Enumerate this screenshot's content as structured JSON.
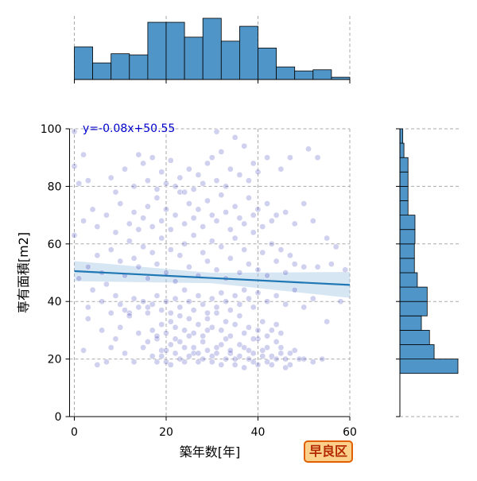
{
  "chart_data": {
    "type": "scatter",
    "xlabel": "築年数[年]",
    "ylabel": "専有面積[m2]",
    "xlim": [
      -1,
      60
    ],
    "ylim": [
      0,
      100
    ],
    "x_ticks": [
      0,
      20,
      40,
      60
    ],
    "y_ticks": [
      0,
      20,
      40,
      60,
      80,
      100
    ],
    "grid": true,
    "regression": {
      "label": "y=-0.08x+50.55",
      "slope": -0.08,
      "intercept": 50.55,
      "line_color": "#1f77b4",
      "ci_color": "#a6c8e4",
      "ci_half_width_at": [
        [
          0,
          3.5
        ],
        [
          30,
          1.8
        ],
        [
          60,
          4.5
        ]
      ]
    },
    "point_color": "#2b2bb8",
    "hist_color": "#4f95c7",
    "x_hist": {
      "bin_edges": [
        0,
        4,
        8,
        12,
        16,
        20,
        24,
        28,
        32,
        36,
        40,
        44,
        48,
        52,
        56,
        60
      ],
      "heights": [
        0.57,
        0.29,
        0.45,
        0.43,
        1.0,
        1.0,
        0.74,
        1.07,
        0.67,
        0.93,
        0.55,
        0.22,
        0.15,
        0.17,
        0.04
      ]
    },
    "y_hist": {
      "bin_edges": [
        15,
        20,
        25,
        30,
        35,
        40,
        45,
        50,
        55,
        60,
        65,
        70,
        75,
        80,
        85,
        90,
        95,
        100
      ],
      "widths": [
        1.0,
        0.59,
        0.51,
        0.37,
        0.47,
        0.47,
        0.3,
        0.25,
        0.25,
        0.26,
        0.26,
        0.14,
        0.14,
        0.14,
        0.14,
        0.07,
        0.05
      ]
    },
    "points": [
      [
        2,
        23
      ],
      [
        3,
        34
      ],
      [
        5,
        18
      ],
      [
        6,
        30
      ],
      [
        7,
        19
      ],
      [
        8,
        24
      ],
      [
        9,
        27
      ],
      [
        10,
        31
      ],
      [
        11,
        22
      ],
      [
        12,
        36
      ],
      [
        13,
        19
      ],
      [
        14,
        29
      ],
      [
        15,
        24
      ],
      [
        16,
        38
      ],
      [
        17,
        21
      ],
      [
        18,
        27
      ],
      [
        19,
        23
      ],
      [
        20,
        19
      ],
      [
        21,
        25
      ],
      [
        22,
        31
      ],
      [
        23,
        20
      ],
      [
        24,
        24
      ],
      [
        25,
        28
      ],
      [
        26,
        22
      ],
      [
        27,
        19
      ],
      [
        28,
        26
      ],
      [
        29,
        30
      ],
      [
        30,
        21
      ],
      [
        31,
        24
      ],
      [
        32,
        18
      ],
      [
        33,
        27
      ],
      [
        34,
        22
      ],
      [
        35,
        20
      ],
      [
        36,
        25
      ],
      [
        37,
        17
      ],
      [
        38,
        23
      ],
      [
        39,
        19
      ],
      [
        40,
        27
      ],
      [
        41,
        21
      ],
      [
        42,
        24
      ],
      [
        43,
        18
      ],
      [
        44,
        26
      ],
      [
        45,
        22
      ],
      [
        46,
        20
      ],
      [
        47,
        18
      ],
      [
        48,
        23
      ],
      [
        49,
        20
      ],
      [
        50,
        20
      ],
      [
        52,
        19
      ],
      [
        54,
        20
      ],
      [
        18,
        19
      ],
      [
        19,
        21
      ],
      [
        20,
        23
      ],
      [
        21,
        18
      ],
      [
        22,
        22
      ],
      [
        23,
        26
      ],
      [
        24,
        19
      ],
      [
        25,
        21
      ],
      [
        26,
        24
      ],
      [
        27,
        22
      ],
      [
        28,
        20
      ],
      [
        29,
        23
      ],
      [
        30,
        19
      ],
      [
        31,
        22
      ],
      [
        32,
        25
      ],
      [
        33,
        20
      ],
      [
        34,
        23
      ],
      [
        35,
        18
      ],
      [
        36,
        21
      ],
      [
        37,
        24
      ],
      [
        38,
        20
      ],
      [
        39,
        22
      ],
      [
        40,
        18
      ],
      [
        41,
        23
      ],
      [
        42,
        19
      ],
      [
        43,
        21
      ],
      [
        44,
        20
      ],
      [
        45,
        24
      ],
      [
        46,
        17
      ],
      [
        47,
        22
      ],
      [
        16,
        26
      ],
      [
        17,
        30
      ],
      [
        18,
        28
      ],
      [
        19,
        32
      ],
      [
        20,
        29
      ],
      [
        21,
        33
      ],
      [
        22,
        27
      ],
      [
        23,
        35
      ],
      [
        24,
        30
      ],
      [
        25,
        34
      ],
      [
        26,
        29
      ],
      [
        27,
        32
      ],
      [
        28,
        28
      ],
      [
        29,
        34
      ],
      [
        30,
        31
      ],
      [
        31,
        36
      ],
      [
        32,
        30
      ],
      [
        33,
        33
      ],
      [
        34,
        28
      ],
      [
        35,
        32
      ],
      [
        36,
        35
      ],
      [
        37,
        29
      ],
      [
        38,
        31
      ],
      [
        39,
        27
      ],
      [
        40,
        30
      ],
      [
        41,
        33
      ],
      [
        42,
        28
      ],
      [
        43,
        30
      ],
      [
        44,
        32
      ],
      [
        45,
        29
      ],
      [
        3,
        38
      ],
      [
        4,
        44
      ],
      [
        6,
        40
      ],
      [
        8,
        36
      ],
      [
        9,
        42
      ],
      [
        10,
        39
      ],
      [
        11,
        37
      ],
      [
        12,
        35
      ],
      [
        13,
        41
      ],
      [
        14,
        38
      ],
      [
        15,
        40
      ],
      [
        16,
        36
      ],
      [
        17,
        39
      ],
      [
        18,
        42
      ],
      [
        19,
        37
      ],
      [
        20,
        40
      ],
      [
        21,
        36
      ],
      [
        22,
        41
      ],
      [
        23,
        38
      ],
      [
        24,
        44
      ],
      [
        25,
        40
      ],
      [
        26,
        37
      ],
      [
        27,
        42
      ],
      [
        28,
        39
      ],
      [
        29,
        36
      ],
      [
        30,
        41
      ],
      [
        31,
        38
      ],
      [
        32,
        43
      ],
      [
        33,
        40
      ],
      [
        34,
        37
      ],
      [
        35,
        42
      ],
      [
        36,
        39
      ],
      [
        37,
        44
      ],
      [
        38,
        41
      ],
      [
        39,
        38
      ],
      [
        40,
        43
      ],
      [
        42,
        40
      ],
      [
        44,
        42
      ],
      [
        46,
        39
      ],
      [
        48,
        44
      ],
      [
        50,
        38
      ],
      [
        52,
        41
      ],
      [
        55,
        33
      ],
      [
        58,
        40
      ],
      [
        1,
        48
      ],
      [
        3,
        52
      ],
      [
        5,
        56
      ],
      [
        6,
        50
      ],
      [
        7,
        46
      ],
      [
        8,
        58
      ],
      [
        10,
        54
      ],
      [
        11,
        49
      ],
      [
        12,
        61
      ],
      [
        13,
        55
      ],
      [
        14,
        52
      ],
      [
        15,
        59
      ],
      [
        16,
        48
      ],
      [
        17,
        57
      ],
      [
        18,
        53
      ],
      [
        19,
        62
      ],
      [
        20,
        50
      ],
      [
        21,
        58
      ],
      [
        22,
        47
      ],
      [
        23,
        56
      ],
      [
        24,
        60
      ],
      [
        25,
        52
      ],
      [
        26,
        63
      ],
      [
        27,
        49
      ],
      [
        28,
        57
      ],
      [
        29,
        54
      ],
      [
        30,
        61
      ],
      [
        31,
        51
      ],
      [
        32,
        59
      ],
      [
        33,
        48
      ],
      [
        34,
        55
      ],
      [
        35,
        62
      ],
      [
        36,
        50
      ],
      [
        37,
        58
      ],
      [
        38,
        53
      ],
      [
        39,
        64
      ],
      [
        40,
        51
      ],
      [
        41,
        57
      ],
      [
        42,
        49
      ],
      [
        43,
        60
      ],
      [
        44,
        54
      ],
      [
        45,
        58
      ],
      [
        46,
        50
      ],
      [
        47,
        56
      ],
      [
        48,
        53
      ],
      [
        50,
        52
      ],
      [
        53,
        52
      ],
      [
        56,
        53
      ],
      [
        59,
        51
      ],
      [
        0,
        63
      ],
      [
        2,
        68
      ],
      [
        4,
        72
      ],
      [
        5,
        66
      ],
      [
        7,
        70
      ],
      [
        9,
        64
      ],
      [
        10,
        74
      ],
      [
        12,
        67
      ],
      [
        13,
        71
      ],
      [
        14,
        65
      ],
      [
        15,
        69
      ],
      [
        16,
        73
      ],
      [
        17,
        66
      ],
      [
        18,
        76
      ],
      [
        19,
        68
      ],
      [
        20,
        72
      ],
      [
        21,
        65
      ],
      [
        22,
        70
      ],
      [
        23,
        78
      ],
      [
        24,
        67
      ],
      [
        25,
        74
      ],
      [
        26,
        69
      ],
      [
        27,
        72
      ],
      [
        28,
        66
      ],
      [
        29,
        75
      ],
      [
        30,
        70
      ],
      [
        31,
        68
      ],
      [
        32,
        77
      ],
      [
        33,
        71
      ],
      [
        34,
        65
      ],
      [
        35,
        73
      ],
      [
        36,
        69
      ],
      [
        37,
        67
      ],
      [
        38,
        76
      ],
      [
        39,
        70
      ],
      [
        40,
        72
      ],
      [
        41,
        66
      ],
      [
        42,
        74
      ],
      [
        43,
        68
      ],
      [
        44,
        70
      ],
      [
        46,
        71
      ],
      [
        48,
        67
      ],
      [
        50,
        74
      ],
      [
        52,
        68
      ],
      [
        55,
        62
      ],
      [
        57,
        59
      ],
      [
        0,
        87
      ],
      [
        1,
        81
      ],
      [
        2,
        91
      ],
      [
        3,
        82
      ],
      [
        8,
        83
      ],
      [
        9,
        78
      ],
      [
        11,
        86
      ],
      [
        13,
        80
      ],
      [
        14,
        91
      ],
      [
        15,
        88
      ],
      [
        16,
        82
      ],
      [
        17,
        90
      ],
      [
        18,
        79
      ],
      [
        19,
        85
      ],
      [
        20,
        81
      ],
      [
        21,
        89
      ],
      [
        22,
        80
      ],
      [
        23,
        83
      ],
      [
        24,
        78
      ],
      [
        25,
        86
      ],
      [
        26,
        79
      ],
      [
        27,
        84
      ],
      [
        28,
        81
      ],
      [
        29,
        88
      ],
      [
        30,
        90
      ],
      [
        31,
        82
      ],
      [
        32,
        92
      ],
      [
        33,
        80
      ],
      [
        34,
        86
      ],
      [
        36,
        84
      ],
      [
        37,
        94
      ],
      [
        38,
        82
      ],
      [
        39,
        88
      ],
      [
        40,
        85
      ],
      [
        42,
        90
      ],
      [
        45,
        86
      ],
      [
        47,
        90
      ],
      [
        51,
        93
      ],
      [
        53,
        90
      ],
      [
        0,
        99
      ],
      [
        31,
        99
      ],
      [
        35,
        97
      ]
    ]
  },
  "badge": {
    "ward": "早良区"
  }
}
